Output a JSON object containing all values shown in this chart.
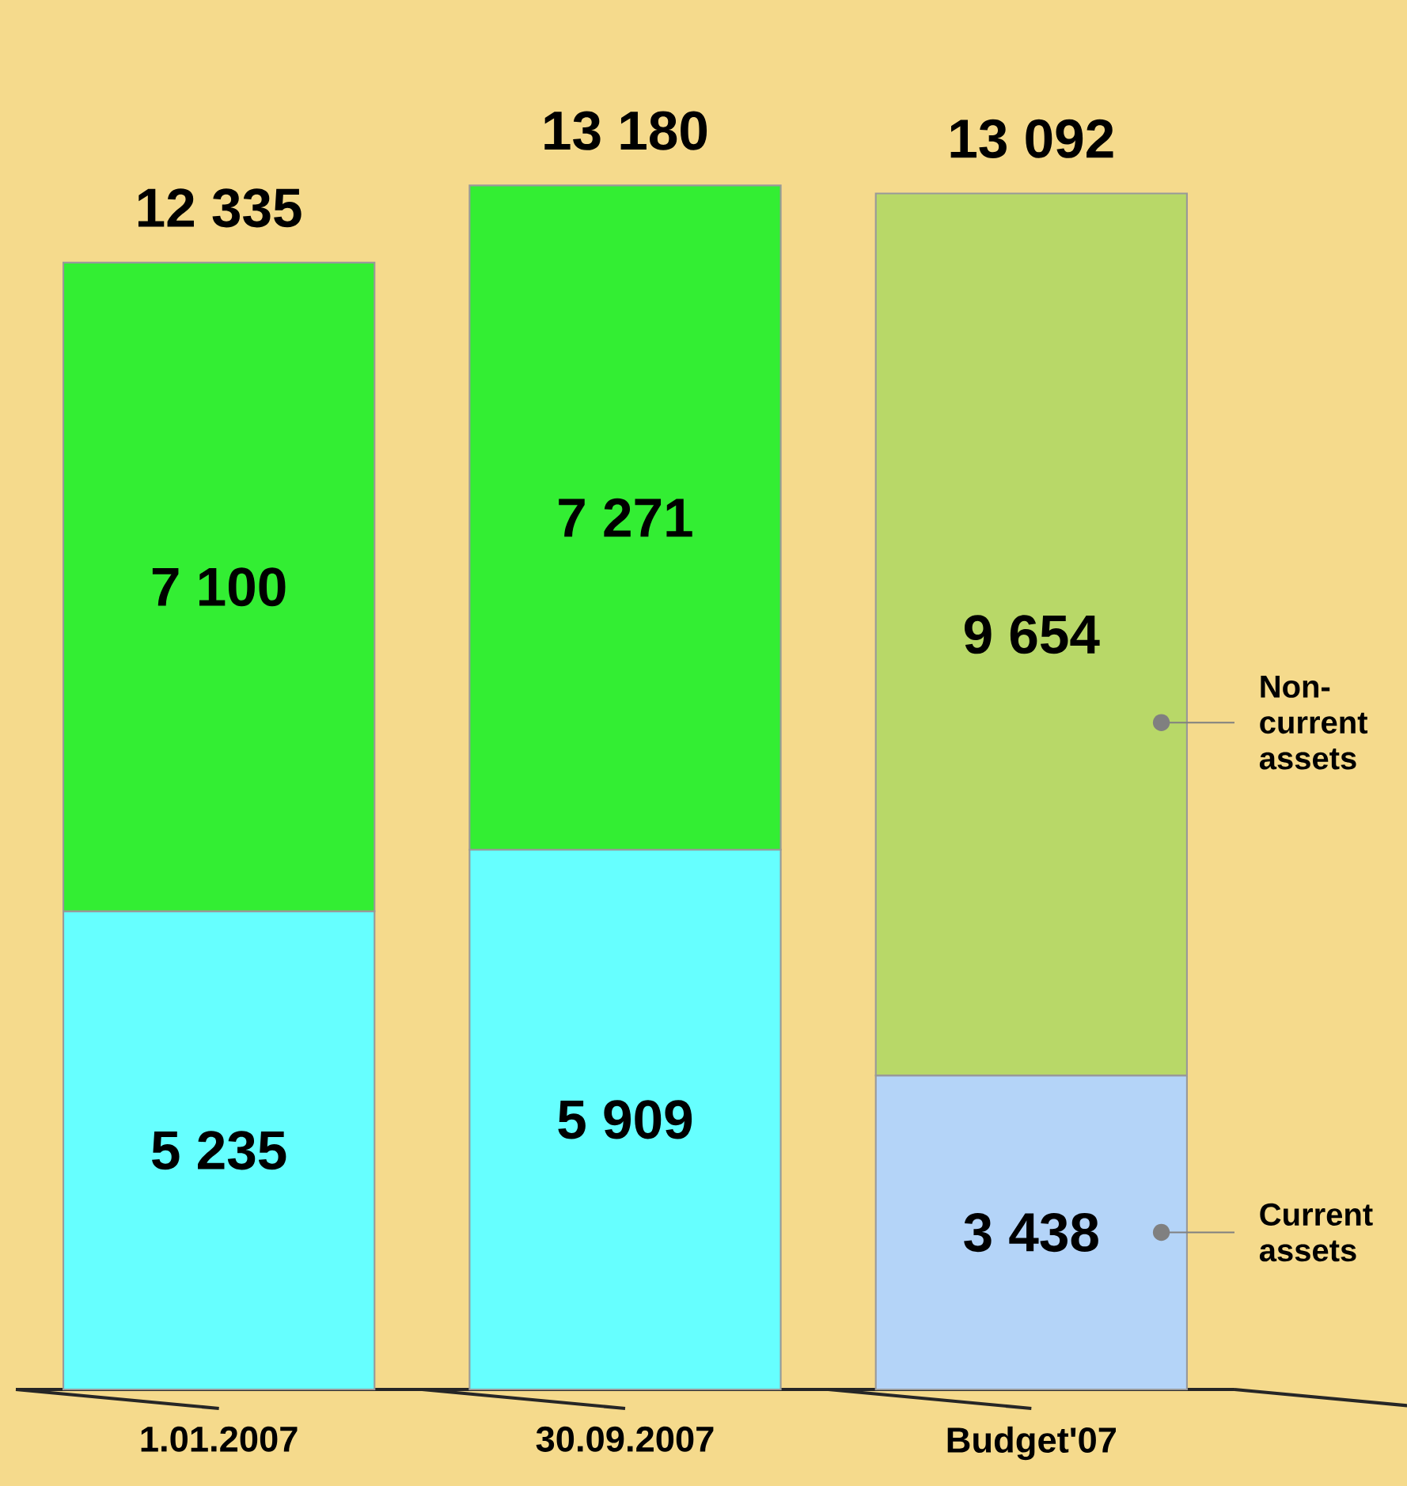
{
  "chart_data": {
    "type": "bar",
    "stacked": true,
    "legend": "right",
    "categories": [
      "1.01.2007",
      "30.09.2007",
      "Budget'07"
    ],
    "series": [
      {
        "name": "Current assets",
        "colors": [
          "#66ffff",
          "#66ffff",
          "#b4d4f8"
        ],
        "values": [
          5235,
          5909,
          3438
        ],
        "value_labels": [
          "5 235",
          "5 909",
          "3 438"
        ]
      },
      {
        "name": "Non-current assets",
        "colors": [
          "#33ee33",
          "#33ee33",
          "#b8d868"
        ],
        "values": [
          7100,
          7271,
          9654
        ],
        "value_labels": [
          "7 100",
          "7 271",
          "9 654"
        ]
      }
    ],
    "totals": [
      "12 335",
      "13 180",
      "13 092"
    ]
  }
}
